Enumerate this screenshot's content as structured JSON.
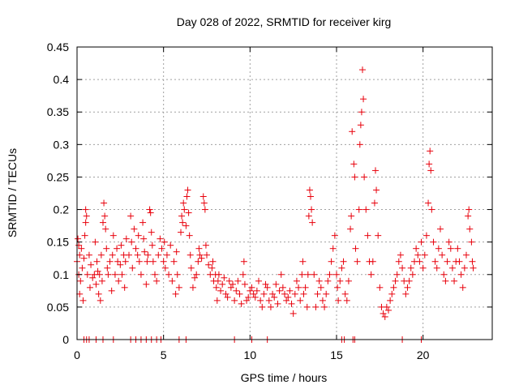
{
  "chart_data": {
    "type": "scatter",
    "title": "Day 028 of 2022, SRMTID for receiver kirg",
    "xlabel": "GPS time / hours",
    "ylabel": "SRMTID / TECUs",
    "xlim": [
      0,
      24
    ],
    "ylim": [
      0,
      0.45
    ],
    "grid": true,
    "marker": "+",
    "color": "#e8000b",
    "xticks": [
      0,
      5,
      10,
      15,
      20
    ],
    "xtick_labels": [
      "0",
      "5",
      "10",
      "15",
      "20"
    ],
    "yticks": [
      0,
      0.05,
      0.1,
      0.15,
      0.2,
      0.25,
      0.3,
      0.35,
      0.4,
      0.45
    ],
    "ytick_labels": [
      "0",
      "0.05",
      "0.1",
      "0.15",
      "0.2",
      "0.25",
      "0.3",
      "0.35",
      "0.4",
      "0.45"
    ],
    "series": [
      {
        "name": "SRMTID",
        "points": [
          [
            0.0,
            0.12
          ],
          [
            0.05,
            0.155
          ],
          [
            0.1,
            0.1
          ],
          [
            0.1,
            0.145
          ],
          [
            0.15,
            0.07
          ],
          [
            0.15,
            0.13
          ],
          [
            0.2,
            0.09
          ],
          [
            0.25,
            0.14
          ],
          [
            0.3,
            0.11
          ],
          [
            0.35,
            0.06
          ],
          [
            0.4,
            0.125
          ],
          [
            0.45,
            0.16
          ],
          [
            0.5,
            0.2
          ],
          [
            0.5,
            0.18
          ],
          [
            0.55,
            0.19
          ],
          [
            0.6,
            0.1
          ],
          [
            0.7,
            0.13
          ],
          [
            0.75,
            0.08
          ],
          [
            0.8,
            0.115
          ],
          [
            0.9,
            0.095
          ],
          [
            1.0,
            0.1
          ],
          [
            1.05,
            0.15
          ],
          [
            1.1,
            0.085
          ],
          [
            1.15,
            0.12
          ],
          [
            1.2,
            0.105
          ],
          [
            1.25,
            0.07
          ],
          [
            1.3,
            0.1
          ],
          [
            1.35,
            0.06
          ],
          [
            1.4,
            0.13
          ],
          [
            1.45,
            0.09
          ],
          [
            1.5,
            0.18
          ],
          [
            1.55,
            0.21
          ],
          [
            1.6,
            0.19
          ],
          [
            1.65,
            0.17
          ],
          [
            1.7,
            0.14
          ],
          [
            1.75,
            0.11
          ],
          [
            1.8,
            0.1
          ],
          [
            1.9,
            0.12
          ],
          [
            2.0,
            0.075
          ],
          [
            2.05,
            0.13
          ],
          [
            2.1,
            0.16
          ],
          [
            2.2,
            0.1
          ],
          [
            2.3,
            0.14
          ],
          [
            2.35,
            0.12
          ],
          [
            2.4,
            0.09
          ],
          [
            2.5,
            0.115
          ],
          [
            2.55,
            0.145
          ],
          [
            2.6,
            0.1
          ],
          [
            2.7,
            0.13
          ],
          [
            2.75,
            0.08
          ],
          [
            2.8,
            0.12
          ],
          [
            2.85,
            0.155
          ],
          [
            3.0,
            0.13
          ],
          [
            3.1,
            0.19
          ],
          [
            3.15,
            0.15
          ],
          [
            3.2,
            0.11
          ],
          [
            3.3,
            0.17
          ],
          [
            3.4,
            0.14
          ],
          [
            3.5,
            0.13
          ],
          [
            3.55,
            0.16
          ],
          [
            3.6,
            0.12
          ],
          [
            3.7,
            0.1
          ],
          [
            3.8,
            0.18
          ],
          [
            3.85,
            0.155
          ],
          [
            3.9,
            0.135
          ],
          [
            4.0,
            0.085
          ],
          [
            4.05,
            0.12
          ],
          [
            4.1,
            0.13
          ],
          [
            4.2,
            0.2
          ],
          [
            4.25,
            0.195
          ],
          [
            4.3,
            0.165
          ],
          [
            4.35,
            0.145
          ],
          [
            4.4,
            0.12
          ],
          [
            4.5,
            0.1
          ],
          [
            4.6,
            0.09
          ],
          [
            4.7,
            0.13
          ],
          [
            4.8,
            0.155
          ],
          [
            4.9,
            0.14
          ],
          [
            5.0,
            0.12
          ],
          [
            5.05,
            0.15
          ],
          [
            5.1,
            0.11
          ],
          [
            5.2,
            0.13
          ],
          [
            5.3,
            0.1
          ],
          [
            5.4,
            0.145
          ],
          [
            5.5,
            0.09
          ],
          [
            5.6,
            0.12
          ],
          [
            5.7,
            0.07
          ],
          [
            5.75,
            0.135
          ],
          [
            5.8,
            0.1
          ],
          [
            5.9,
            0.08
          ],
          [
            6.0,
            0.165
          ],
          [
            6.05,
            0.19
          ],
          [
            6.1,
            0.18
          ],
          [
            6.15,
            0.21
          ],
          [
            6.2,
            0.2
          ],
          [
            6.3,
            0.175
          ],
          [
            6.35,
            0.22
          ],
          [
            6.4,
            0.23
          ],
          [
            6.45,
            0.195
          ],
          [
            6.5,
            0.16
          ],
          [
            6.55,
            0.13
          ],
          [
            6.6,
            0.11
          ],
          [
            6.7,
            0.08
          ],
          [
            6.8,
            0.095
          ],
          [
            6.9,
            0.1
          ],
          [
            7.0,
            0.12
          ],
          [
            7.05,
            0.14
          ],
          [
            7.1,
            0.13
          ],
          [
            7.2,
            0.125
          ],
          [
            7.3,
            0.22
          ],
          [
            7.35,
            0.21
          ],
          [
            7.4,
            0.2
          ],
          [
            7.45,
            0.145
          ],
          [
            7.5,
            0.13
          ],
          [
            7.6,
            0.115
          ],
          [
            7.7,
            0.1
          ],
          [
            7.8,
            0.11
          ],
          [
            7.85,
            0.12
          ],
          [
            7.9,
            0.09
          ],
          [
            8.0,
            0.1
          ],
          [
            8.05,
            0.08
          ],
          [
            8.1,
            0.06
          ],
          [
            8.15,
            0.09
          ],
          [
            8.2,
            0.1
          ],
          [
            8.3,
            0.075
          ],
          [
            8.4,
            0.085
          ],
          [
            8.5,
            0.095
          ],
          [
            8.6,
            0.07
          ],
          [
            8.7,
            0.065
          ],
          [
            8.8,
            0.09
          ],
          [
            8.9,
            0.08
          ],
          [
            9.0,
            0.085
          ],
          [
            9.1,
            0.06
          ],
          [
            9.2,
            0.075
          ],
          [
            9.3,
            0.09
          ],
          [
            9.4,
            0.07
          ],
          [
            9.5,
            0.055
          ],
          [
            9.6,
            0.1
          ],
          [
            9.65,
            0.12
          ],
          [
            9.7,
            0.085
          ],
          [
            9.8,
            0.06
          ],
          [
            9.9,
            0.065
          ],
          [
            10.0,
            0.075
          ],
          [
            10.1,
            0.08
          ],
          [
            10.2,
            0.07
          ],
          [
            10.3,
            0.065
          ],
          [
            10.4,
            0.075
          ],
          [
            10.5,
            0.09
          ],
          [
            10.6,
            0.06
          ],
          [
            10.7,
            0.05
          ],
          [
            10.8,
            0.07
          ],
          [
            10.9,
            0.085
          ],
          [
            11.0,
            0.08
          ],
          [
            11.1,
            0.06
          ],
          [
            11.2,
            0.05
          ],
          [
            11.3,
            0.07
          ],
          [
            11.4,
            0.065
          ],
          [
            11.5,
            0.085
          ],
          [
            11.6,
            0.055
          ],
          [
            11.7,
            0.075
          ],
          [
            11.8,
            0.1
          ],
          [
            11.9,
            0.08
          ],
          [
            12.0,
            0.07
          ],
          [
            12.1,
            0.06
          ],
          [
            12.2,
            0.065
          ],
          [
            12.3,
            0.075
          ],
          [
            12.4,
            0.055
          ],
          [
            12.5,
            0.04
          ],
          [
            12.6,
            0.07
          ],
          [
            12.7,
            0.09
          ],
          [
            12.8,
            0.08
          ],
          [
            12.9,
            0.06
          ],
          [
            13.0,
            0.1
          ],
          [
            13.05,
            0.12
          ],
          [
            13.1,
            0.07
          ],
          [
            13.2,
            0.08
          ],
          [
            13.3,
            0.05
          ],
          [
            13.35,
            0.1
          ],
          [
            13.4,
            0.19
          ],
          [
            13.45,
            0.23
          ],
          [
            13.5,
            0.22
          ],
          [
            13.55,
            0.2
          ],
          [
            13.6,
            0.18
          ],
          [
            13.7,
            0.1
          ],
          [
            13.8,
            0.05
          ],
          [
            13.9,
            0.07
          ],
          [
            14.0,
            0.09
          ],
          [
            14.1,
            0.08
          ],
          [
            14.2,
            0.06
          ],
          [
            14.3,
            0.05
          ],
          [
            14.4,
            0.07
          ],
          [
            14.5,
            0.09
          ],
          [
            14.6,
            0.1
          ],
          [
            14.7,
            0.12
          ],
          [
            14.8,
            0.14
          ],
          [
            14.9,
            0.16
          ],
          [
            15.0,
            0.1
          ],
          [
            15.05,
            0.08
          ],
          [
            15.1,
            0.06
          ],
          [
            15.2,
            0.09
          ],
          [
            15.3,
            0.11
          ],
          [
            15.4,
            0.12
          ],
          [
            15.5,
            0.07
          ],
          [
            15.6,
            0.06
          ],
          [
            15.7,
            0.09
          ],
          [
            15.8,
            0.17
          ],
          [
            15.85,
            0.19
          ],
          [
            15.9,
            0.32
          ],
          [
            16.0,
            0.27
          ],
          [
            16.05,
            0.25
          ],
          [
            16.1,
            0.14
          ],
          [
            16.2,
            0.12
          ],
          [
            16.3,
            0.2
          ],
          [
            16.35,
            0.3
          ],
          [
            16.4,
            0.33
          ],
          [
            16.45,
            0.35
          ],
          [
            16.5,
            0.415
          ],
          [
            16.55,
            0.37
          ],
          [
            16.6,
            0.25
          ],
          [
            16.7,
            0.2
          ],
          [
            16.8,
            0.16
          ],
          [
            16.9,
            0.12
          ],
          [
            17.0,
            0.1
          ],
          [
            17.1,
            0.12
          ],
          [
            17.2,
            0.21
          ],
          [
            17.25,
            0.26
          ],
          [
            17.3,
            0.23
          ],
          [
            17.4,
            0.16
          ],
          [
            17.5,
            0.08
          ],
          [
            17.6,
            0.05
          ],
          [
            17.7,
            0.04
          ],
          [
            17.8,
            0.035
          ],
          [
            17.9,
            0.05
          ],
          [
            18.0,
            0.045
          ],
          [
            18.1,
            0.06
          ],
          [
            18.2,
            0.07
          ],
          [
            18.3,
            0.08
          ],
          [
            18.4,
            0.09
          ],
          [
            18.5,
            0.1
          ],
          [
            18.6,
            0.12
          ],
          [
            18.7,
            0.13
          ],
          [
            18.8,
            0.11
          ],
          [
            18.9,
            0.09
          ],
          [
            19.0,
            0.07
          ],
          [
            19.1,
            0.08
          ],
          [
            19.2,
            0.09
          ],
          [
            19.3,
            0.11
          ],
          [
            19.4,
            0.1
          ],
          [
            19.5,
            0.12
          ],
          [
            19.6,
            0.14
          ],
          [
            19.7,
            0.13
          ],
          [
            19.8,
            0.12
          ],
          [
            19.9,
            0.15
          ],
          [
            20.0,
            0.11
          ],
          [
            20.1,
            0.13
          ],
          [
            20.2,
            0.16
          ],
          [
            20.3,
            0.21
          ],
          [
            20.35,
            0.27
          ],
          [
            20.4,
            0.29
          ],
          [
            20.45,
            0.26
          ],
          [
            20.5,
            0.2
          ],
          [
            20.6,
            0.15
          ],
          [
            20.7,
            0.12
          ],
          [
            20.8,
            0.11
          ],
          [
            20.9,
            0.14
          ],
          [
            21.0,
            0.17
          ],
          [
            21.1,
            0.13
          ],
          [
            21.2,
            0.1
          ],
          [
            21.3,
            0.09
          ],
          [
            21.4,
            0.12
          ],
          [
            21.5,
            0.15
          ],
          [
            21.6,
            0.14
          ],
          [
            21.7,
            0.11
          ],
          [
            21.8,
            0.09
          ],
          [
            21.9,
            0.12
          ],
          [
            22.0,
            0.14
          ],
          [
            22.1,
            0.12
          ],
          [
            22.2,
            0.1
          ],
          [
            22.3,
            0.08
          ],
          [
            22.4,
            0.11
          ],
          [
            22.5,
            0.13
          ],
          [
            22.6,
            0.19
          ],
          [
            22.65,
            0.2
          ],
          [
            22.7,
            0.17
          ],
          [
            22.8,
            0.15
          ],
          [
            22.85,
            0.12
          ],
          [
            22.9,
            0.11
          ],
          [
            0.4,
            0.0
          ],
          [
            0.55,
            0.0
          ],
          [
            0.7,
            0.0
          ],
          [
            1.1,
            0.0
          ],
          [
            1.5,
            0.0
          ],
          [
            2.1,
            0.0
          ],
          [
            3.1,
            0.0
          ],
          [
            3.4,
            0.0
          ],
          [
            3.7,
            0.0
          ],
          [
            4.0,
            0.0
          ],
          [
            4.3,
            0.0
          ],
          [
            4.6,
            0.0
          ],
          [
            4.85,
            0.0
          ],
          [
            5.9,
            0.0
          ],
          [
            6.3,
            0.0
          ],
          [
            9.1,
            0.0
          ],
          [
            10.1,
            0.0
          ],
          [
            11.0,
            0.0
          ],
          [
            15.3,
            0.0
          ],
          [
            15.45,
            0.0
          ],
          [
            15.95,
            0.0
          ],
          [
            16.05,
            0.0
          ],
          [
            18.8,
            0.0
          ],
          [
            19.9,
            0.0
          ]
        ]
      }
    ]
  }
}
